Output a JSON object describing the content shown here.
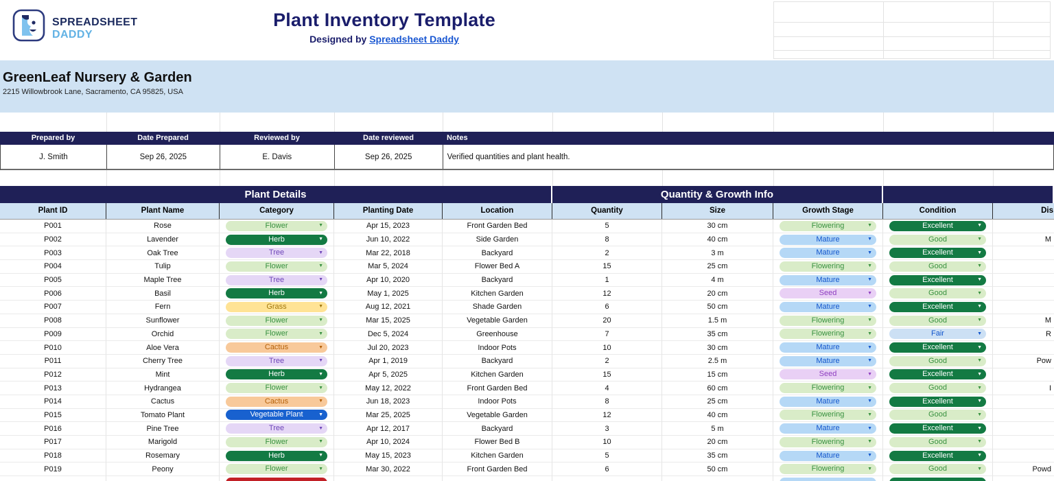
{
  "brand": {
    "name_top": "SPREADSHEET",
    "name_bottom": "DADDY"
  },
  "header": {
    "title": "Plant Inventory Template",
    "designed_by_prefix": "Designed by ",
    "designed_by_link": "Spreadsheet Daddy"
  },
  "company": {
    "name": "GreenLeaf Nursery & Garden",
    "address": "2215 Willowbrook Lane, Sacramento, CA 95825, USA"
  },
  "prepared": {
    "headers": [
      "Prepared by",
      "Date Prepared",
      "Reviewed by",
      "Date reviewed",
      "Notes"
    ],
    "values": [
      "J. Smith",
      "Sep 26, 2025",
      "E. Davis",
      "Sep 26, 2025",
      "Verified quantities and plant health."
    ]
  },
  "icons": {
    "dropdown_arrow": "▼"
  },
  "colors": {
    "navy_header": "#1f2057",
    "light_blue_band": "#cfe2f3",
    "link_blue": "#1957d2",
    "pill_flower_bg": "#d9ecc8",
    "pill_flower_text": "#38913f",
    "pill_herb_bg": "#137a43",
    "pill_herb_text": "#ffffff",
    "pill_tree_bg": "#e5d7f6",
    "pill_tree_text": "#6d45b8",
    "pill_grass_bg": "#ffe395",
    "pill_grass_text": "#a1770c",
    "pill_cactus_bg": "#f8c99a",
    "pill_cactus_text": "#b45f06",
    "pill_vegetable_bg": "#1861cf",
    "pill_vegetable_text": "#ffffff",
    "pill_mature_bg": "#b5d8f6",
    "pill_mature_text": "#1155cc",
    "pill_seed_bg": "#e9d0f5",
    "pill_seed_text": "#8e3fc0",
    "pill_excellent_bg": "#137a43",
    "pill_excellent_text": "#ffffff",
    "pill_good_bg": "#d9ecc8",
    "pill_good_text": "#38913f",
    "pill_fair_bg": "#cce0f4",
    "pill_fair_text": "#1155cc",
    "pill_partial_red_bg": "#c22026"
  },
  "table": {
    "sections": [
      {
        "label": "Plant Details"
      },
      {
        "label": "Quantity & Growth Info"
      },
      {
        "label": ""
      }
    ],
    "columns": [
      "Plant ID",
      "Plant Name",
      "Category",
      "Planting Date",
      "Location",
      "Quantity",
      "Size",
      "Growth Stage",
      "Condition",
      "Dis"
    ],
    "rows": [
      {
        "id": "P001",
        "name": "Rose",
        "category": "Flower",
        "category_style": "green-light",
        "date": "Apr 15, 2023",
        "location": "Front Garden Bed",
        "qty": "5",
        "size": "30 cm",
        "stage": "Flowering",
        "stage_style": "green-light",
        "condition": "Excellent",
        "condition_style": "green-dark",
        "disease": ""
      },
      {
        "id": "P002",
        "name": "Lavender",
        "category": "Herb",
        "category_style": "green-dark",
        "date": "Jun 10, 2022",
        "location": "Side Garden",
        "qty": "8",
        "size": "40 cm",
        "stage": "Mature",
        "stage_style": "blue-light",
        "condition": "Good",
        "condition_style": "green-light",
        "disease": "M"
      },
      {
        "id": "P003",
        "name": "Oak Tree",
        "category": "Tree",
        "category_style": "purple-light",
        "date": "Mar 22, 2018",
        "location": "Backyard",
        "qty": "2",
        "size": "3 m",
        "stage": "Mature",
        "stage_style": "blue-light",
        "condition": "Excellent",
        "condition_style": "green-dark",
        "disease": ""
      },
      {
        "id": "P004",
        "name": "Tulip",
        "category": "Flower",
        "category_style": "green-light",
        "date": "Mar 5, 2024",
        "location": "Flower Bed A",
        "qty": "15",
        "size": "25 cm",
        "stage": "Flowering",
        "stage_style": "green-light",
        "condition": "Good",
        "condition_style": "green-light",
        "disease": ""
      },
      {
        "id": "P005",
        "name": "Maple Tree",
        "category": "Tree",
        "category_style": "purple-light",
        "date": "Apr 10, 2020",
        "location": "Backyard",
        "qty": "1",
        "size": "4 m",
        "stage": "Mature",
        "stage_style": "blue-light",
        "condition": "Excellent",
        "condition_style": "green-dark",
        "disease": ""
      },
      {
        "id": "P006",
        "name": "Basil",
        "category": "Herb",
        "category_style": "green-dark",
        "date": "May 1, 2025",
        "location": "Kitchen Garden",
        "qty": "12",
        "size": "20 cm",
        "stage": "Seed",
        "stage_style": "lavender",
        "condition": "Good",
        "condition_style": "green-light",
        "disease": ""
      },
      {
        "id": "P007",
        "name": "Fern",
        "category": "Grass",
        "category_style": "yellow",
        "date": "Aug 12, 2021",
        "location": "Shade Garden",
        "qty": "6",
        "size": "50 cm",
        "stage": "Mature",
        "stage_style": "blue-light",
        "condition": "Excellent",
        "condition_style": "green-dark",
        "disease": ""
      },
      {
        "id": "P008",
        "name": "Sunflower",
        "category": "Flower",
        "category_style": "green-light",
        "date": "Mar 15, 2025",
        "location": "Vegetable Garden",
        "qty": "20",
        "size": "1.5 m",
        "stage": "Flowering",
        "stage_style": "green-light",
        "condition": "Good",
        "condition_style": "green-light",
        "disease": "M"
      },
      {
        "id": "P009",
        "name": "Orchid",
        "category": "Flower",
        "category_style": "green-light",
        "date": "Dec 5, 2024",
        "location": "Greenhouse",
        "qty": "7",
        "size": "35 cm",
        "stage": "Flowering",
        "stage_style": "green-light",
        "condition": "Fair",
        "condition_style": "blue-pale",
        "disease": "R"
      },
      {
        "id": "P010",
        "name": "Aloe Vera",
        "category": "Cactus",
        "category_style": "orange",
        "date": "Jul 20, 2023",
        "location": "Indoor Pots",
        "qty": "10",
        "size": "30 cm",
        "stage": "Mature",
        "stage_style": "blue-light",
        "condition": "Excellent",
        "condition_style": "green-dark",
        "disease": ""
      },
      {
        "id": "P011",
        "name": "Cherry Tree",
        "category": "Tree",
        "category_style": "purple-light",
        "date": "Apr 1, 2019",
        "location": "Backyard",
        "qty": "2",
        "size": "2.5 m",
        "stage": "Mature",
        "stage_style": "blue-light",
        "condition": "Good",
        "condition_style": "green-light",
        "disease": "Pow"
      },
      {
        "id": "P012",
        "name": "Mint",
        "category": "Herb",
        "category_style": "green-dark",
        "date": "Apr 5, 2025",
        "location": "Kitchen Garden",
        "qty": "15",
        "size": "15 cm",
        "stage": "Seed",
        "stage_style": "lavender",
        "condition": "Excellent",
        "condition_style": "green-dark",
        "disease": ""
      },
      {
        "id": "P013",
        "name": "Hydrangea",
        "category": "Flower",
        "category_style": "green-light",
        "date": "May 12, 2022",
        "location": "Front Garden Bed",
        "qty": "4",
        "size": "60 cm",
        "stage": "Flowering",
        "stage_style": "green-light",
        "condition": "Good",
        "condition_style": "green-light",
        "disease": "I"
      },
      {
        "id": "P014",
        "name": "Cactus",
        "category": "Cactus",
        "category_style": "orange",
        "date": "Jun 18, 2023",
        "location": "Indoor Pots",
        "qty": "8",
        "size": "25 cm",
        "stage": "Mature",
        "stage_style": "blue-light",
        "condition": "Excellent",
        "condition_style": "green-dark",
        "disease": ""
      },
      {
        "id": "P015",
        "name": "Tomato Plant",
        "category": "Vegetable Plant",
        "category_style": "blue-dark",
        "date": "Mar 25, 2025",
        "location": "Vegetable Garden",
        "qty": "12",
        "size": "40 cm",
        "stage": "Flowering",
        "stage_style": "green-light",
        "condition": "Good",
        "condition_style": "green-light",
        "disease": ""
      },
      {
        "id": "P016",
        "name": "Pine Tree",
        "category": "Tree",
        "category_style": "purple-light",
        "date": "Apr 12, 2017",
        "location": "Backyard",
        "qty": "3",
        "size": "5 m",
        "stage": "Mature",
        "stage_style": "blue-light",
        "condition": "Excellent",
        "condition_style": "green-dark",
        "disease": ""
      },
      {
        "id": "P017",
        "name": "Marigold",
        "category": "Flower",
        "category_style": "green-light",
        "date": "Apr 10, 2024",
        "location": "Flower Bed B",
        "qty": "10",
        "size": "20 cm",
        "stage": "Flowering",
        "stage_style": "green-light",
        "condition": "Good",
        "condition_style": "green-light",
        "disease": ""
      },
      {
        "id": "P018",
        "name": "Rosemary",
        "category": "Herb",
        "category_style": "green-dark",
        "date": "May 15, 2023",
        "location": "Kitchen Garden",
        "qty": "5",
        "size": "35 cm",
        "stage": "Mature",
        "stage_style": "blue-light",
        "condition": "Excellent",
        "condition_style": "green-dark",
        "disease": ""
      },
      {
        "id": "P019",
        "name": "Peony",
        "category": "Flower",
        "category_style": "green-light",
        "date": "Mar 30, 2022",
        "location": "Front Garden Bed",
        "qty": "6",
        "size": "50 cm",
        "stage": "Flowering",
        "stage_style": "green-light",
        "condition": "Good",
        "condition_style": "green-light",
        "disease": "Powd"
      }
    ],
    "partial_row": {
      "category_style": "red",
      "stage_style": "blue-light",
      "condition_style": "green-dark"
    }
  }
}
